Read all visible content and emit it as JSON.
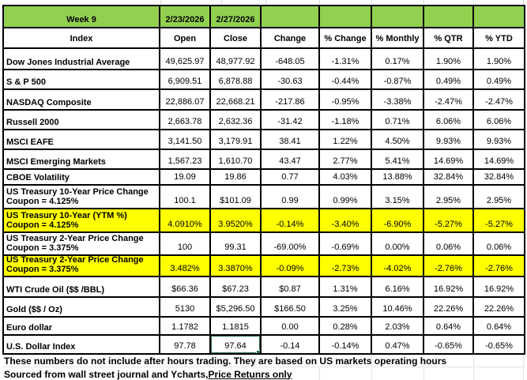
{
  "table": {
    "week_label": "Week 9",
    "date_open": "2/23/2026",
    "date_close": "2/27/2026",
    "columns": [
      "Index",
      "Open",
      "Close",
      "Change",
      "% Change",
      "% Monthly",
      "% QTR",
      "% YTD"
    ],
    "rows": [
      {
        "label": "Dow Jones Industrial Average",
        "highlight": false,
        "values": [
          "49,625.97",
          "48,977.92",
          "-648.05",
          "-1.31%",
          "0.17%",
          "1.90%",
          "1.90%"
        ]
      },
      {
        "label": "S & P 500",
        "highlight": false,
        "values": [
          "6,909.51",
          "6,878.88",
          "-30.63",
          "-0.44%",
          "-0.87%",
          "0.49%",
          "0.49%"
        ]
      },
      {
        "label": "NASDAQ Composite",
        "highlight": false,
        "values": [
          "22,886.07",
          "22,668.21",
          "-217.86",
          "-0.95%",
          "-3.38%",
          "-2.47%",
          "-2.47%"
        ]
      },
      {
        "label": "Russell 2000",
        "highlight": false,
        "values": [
          "2,663.78",
          "2,632.36",
          "-31.42",
          "-1.18%",
          "0.71%",
          "6.06%",
          "6.06%"
        ]
      },
      {
        "label": "MSCI EAFE",
        "highlight": false,
        "values": [
          "3,141.50",
          "3,179.91",
          "38.41",
          "1.22%",
          "4.50%",
          "9.93%",
          "9.93%"
        ]
      },
      {
        "label": "MSCI Emerging Markets",
        "highlight": false,
        "values": [
          "1,567.23",
          "1,610.70",
          "43.47",
          "2.77%",
          "5.41%",
          "14.69%",
          "14.69%"
        ]
      },
      {
        "label": "CBOE Volatility",
        "highlight": false,
        "values": [
          "19.09",
          "19.86",
          "0.77",
          "4.03%",
          "13.88%",
          "32.84%",
          "32.84%"
        ]
      },
      {
        "label": "US Treasury 10-Year Price Change Coupon = 4.125%",
        "highlight": false,
        "values": [
          "100.1",
          "$101.09",
          "0.99",
          "0.99%",
          "3.15%",
          "2.95%",
          "2.95%"
        ]
      },
      {
        "label": "US Treasury 10-Year (YTM %) Coupon = 4.125%",
        "highlight": true,
        "values": [
          "4.0910%",
          "3.9520%",
          "-0.14%",
          "-3.40%",
          "-6.90%",
          "-5.27%",
          "-5.27%"
        ]
      },
      {
        "label": "US Treasury 2-Year Price Change Coupon = 3.375%",
        "highlight": false,
        "values": [
          "100",
          "99.31",
          "-69.00%",
          "-0.69%",
          "0.00%",
          "0.06%",
          "0.06%"
        ]
      },
      {
        "label": "US Treasury 2-Year Price Change Coupon = 3.375%",
        "highlight": true,
        "values": [
          "3.482%",
          "3.3870%",
          "-0.09%",
          "-2.73%",
          "-4.02%",
          "-2.76%",
          "-2.76%"
        ]
      },
      {
        "label": "WTI Crude Oil ($$ /BBL)",
        "highlight": false,
        "values": [
          "$66.36",
          "$67.23",
          "$0.87",
          "1.31%",
          "6.16%",
          "16.92%",
          "16.92%"
        ]
      },
      {
        "label": "Gold  ($$ / Oz)",
        "highlight": false,
        "values": [
          "5130",
          "$5,296.50",
          "$166.50",
          "3.25%",
          "10.46%",
          "22.26%",
          "22.26%"
        ]
      },
      {
        "label": "Euro dollar",
        "highlight": false,
        "values": [
          "1.1782",
          "1.1815",
          "0.00",
          "0.28%",
          "2.03%",
          "0.64%",
          "0.64%"
        ]
      },
      {
        "label": "U.S. Dollar Index",
        "highlight": false,
        "values": [
          "97.78",
          "97.64",
          "-0.14",
          "-0.14%",
          "0.47%",
          "-0.65%",
          "-0.65%"
        ]
      }
    ],
    "selection": {
      "row_index": 14,
      "value_index": 1,
      "selected_value": "97.64"
    }
  },
  "footer": {
    "note": "These numbers do not include after hours trading. They are based on US markets operating hours",
    "source_prefix": "Sourced from wall street journal and Ycharts, ",
    "source_link": "Price Retunrs only"
  },
  "colors": {
    "header_green": "#92D050",
    "highlight_yellow": "#FFFF00",
    "selection_green": "#217346",
    "border_black": "#000000",
    "gridline_gray": "#D9D9D9"
  }
}
